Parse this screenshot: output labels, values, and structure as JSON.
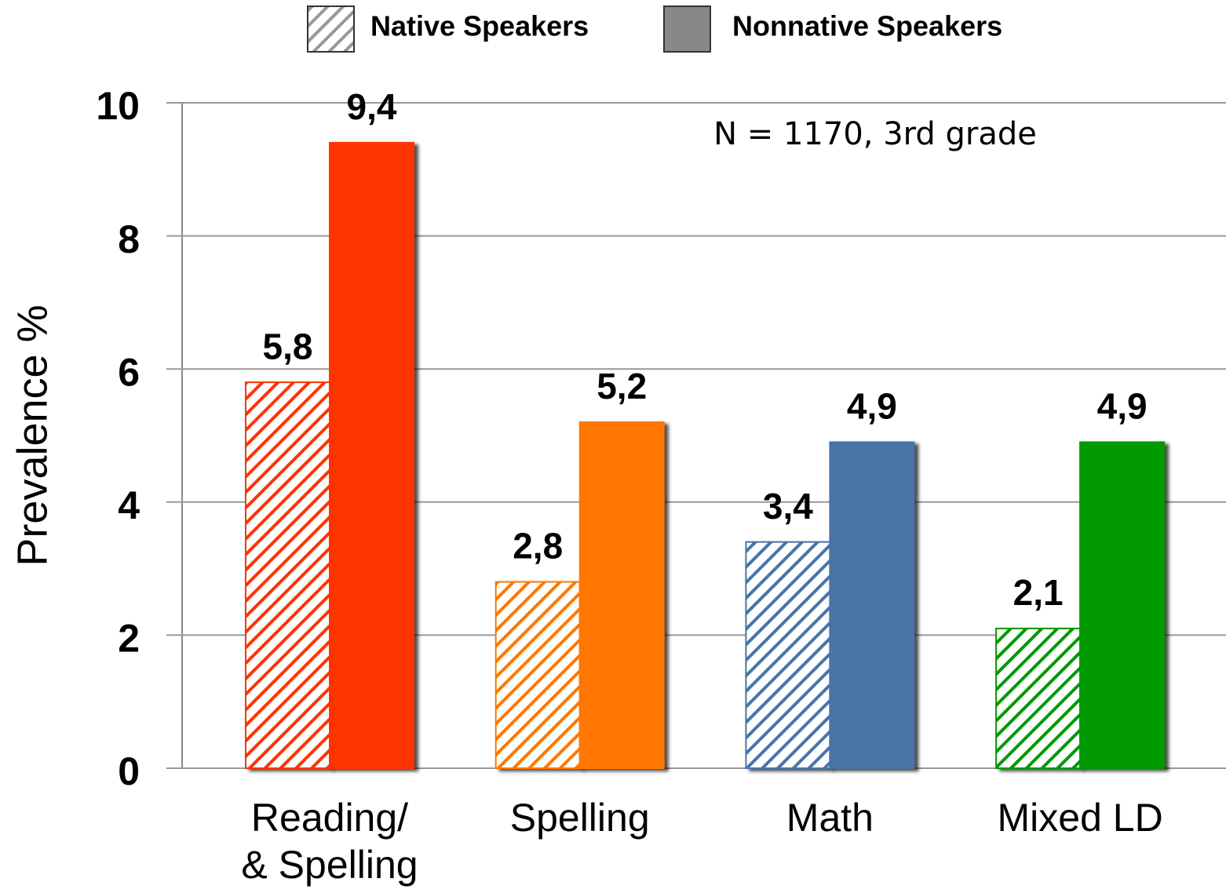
{
  "chart_data": {
    "type": "bar",
    "annotation": "N = 1170, 3rd grade",
    "y_label": "Prevalence  %",
    "categories": [
      "Reading/\n& Spelling",
      "Spelling",
      "Math",
      "Mixed LD"
    ],
    "category_colors": [
      "#ff3300",
      "#ff7700",
      "#4a74a6",
      "#009900"
    ],
    "series": [
      {
        "name": "Native Speakers",
        "color": "#999999",
        "hatched": true,
        "values": [
          5.8,
          2.8,
          3.4,
          2.1
        ],
        "value_labels": [
          "5,8",
          "2,8",
          "3,4",
          "2,1"
        ]
      },
      {
        "name": "Nonnative Speakers",
        "color": "#888888",
        "hatched": false,
        "values": [
          9.4,
          5.2,
          4.9,
          4.9
        ],
        "value_labels": [
          "9,4",
          "5,2",
          "4,9",
          "4,9"
        ]
      }
    ],
    "ylim": [
      0,
      10
    ],
    "yticks": [
      0,
      2,
      4,
      6,
      8,
      10
    ],
    "grid": true
  }
}
